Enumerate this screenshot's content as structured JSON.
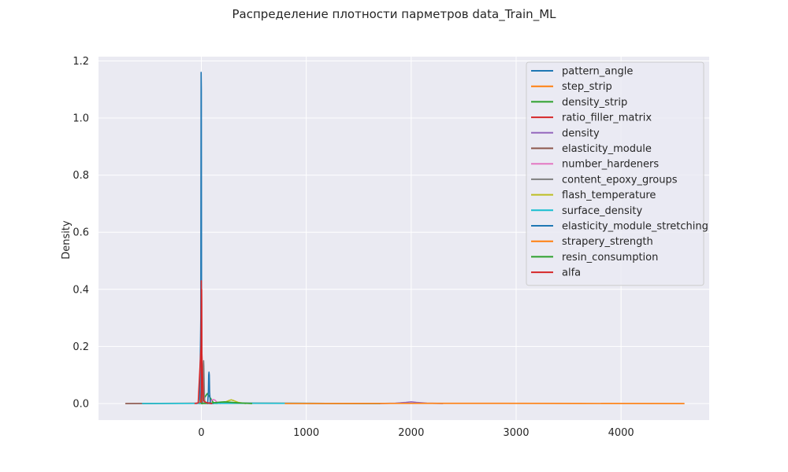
{
  "chart_data": {
    "type": "line",
    "title": "Распределение плотности парметров data_Train_ML",
    "xlabel": "",
    "ylabel": "Density",
    "xlim": [
      -980,
      4840
    ],
    "ylim": [
      -0.058,
      1.215
    ],
    "xticks": [
      0,
      1000,
      2000,
      3000,
      4000
    ],
    "yticks": [
      0.0,
      0.2,
      0.4,
      0.6,
      0.8,
      1.0,
      1.2
    ],
    "xtick_labels": [
      "0",
      "1000",
      "2000",
      "3000",
      "4000"
    ],
    "ytick_labels": [
      "0.0",
      "0.2",
      "0.4",
      "0.6",
      "0.8",
      "1.0",
      "1.2"
    ],
    "grid": true,
    "legend_position": "top-right",
    "series": [
      {
        "name": "pattern_angle",
        "color": "#1f77b4",
        "x": [
          -45,
          -15,
          -5,
          -2,
          0,
          2,
          5,
          15,
          45,
          60,
          90,
          120
        ],
        "y": [
          0,
          0.002,
          0.3,
          1.16,
          1.1,
          0.3,
          0.02,
          0.001,
          0.0005,
          0.0002,
          0.0001,
          0
        ]
      },
      {
        "name": "step_strip",
        "color": "#ff7f0e",
        "x": [
          -15,
          0,
          6,
          10,
          14,
          20,
          35
        ],
        "y": [
          0,
          0.02,
          0.08,
          0.1,
          0.08,
          0.02,
          0
        ]
      },
      {
        "name": "density_strip",
        "color": "#2ca02c",
        "x": [
          -20,
          0,
          30,
          57,
          85,
          115,
          140
        ],
        "y": [
          0,
          0.003,
          0.02,
          0.035,
          0.02,
          0.003,
          0
        ]
      },
      {
        "name": "ratio_filler_matrix",
        "color": "#d62728",
        "x": [
          -3,
          0,
          2,
          3,
          4,
          6,
          9
        ],
        "y": [
          0,
          0.05,
          0.35,
          0.4,
          0.35,
          0.05,
          0
        ]
      },
      {
        "name": "density",
        "color": "#9467bd",
        "x": [
          1700,
          1850,
          1950,
          2000,
          2050,
          2150,
          2300
        ],
        "y": [
          0,
          0.001,
          0.004,
          0.006,
          0.004,
          0.001,
          0
        ]
      },
      {
        "name": "elasticity_module",
        "color": "#8c564b",
        "x": [
          -720,
          -400,
          0,
          300,
          700,
          1200,
          1700
        ],
        "y": [
          0,
          0.0003,
          0.001,
          0.0014,
          0.001,
          0.0003,
          0
        ]
      },
      {
        "name": "number_hardeners",
        "color": "#e377c2",
        "x": [
          50,
          80,
          100,
          115,
          130,
          150,
          180
        ],
        "y": [
          0,
          0.004,
          0.012,
          0.014,
          0.012,
          0.004,
          0
        ]
      },
      {
        "name": "content_epoxy_groups",
        "color": "#7f7f7f",
        "x": [
          10,
          15,
          20,
          22,
          24,
          29,
          34
        ],
        "y": [
          0,
          0.03,
          0.13,
          0.15,
          0.13,
          0.03,
          0
        ]
      },
      {
        "name": "flash_temperature",
        "color": "#bcbd22",
        "x": [
          150,
          220,
          260,
          285,
          310,
          350,
          420
        ],
        "y": [
          0,
          0.004,
          0.01,
          0.013,
          0.01,
          0.004,
          0
        ]
      },
      {
        "name": "surface_density",
        "color": "#17becf",
        "x": [
          -560,
          -200,
          200,
          480,
          800,
          1200,
          1700
        ],
        "y": [
          0,
          0.0003,
          0.0008,
          0.001,
          0.0008,
          0.0003,
          0
        ]
      },
      {
        "name": "elasticity_module_stretching",
        "color": "#1f77b4",
        "x": [
          60,
          67,
          70,
          73,
          76,
          79,
          86
        ],
        "y": [
          0,
          0.04,
          0.1,
          0.11,
          0.1,
          0.04,
          0
        ]
      },
      {
        "name": "strapery_strength",
        "color": "#ff7f0e",
        "x": [
          800,
          1500,
          2200,
          2460,
          2800,
          3600,
          4600
        ],
        "y": [
          0,
          0.0003,
          0.0007,
          0.0008,
          0.0007,
          0.0003,
          0
        ]
      },
      {
        "name": "resin_consumption",
        "color": "#2ca02c",
        "x": [
          0,
          100,
          180,
          220,
          260,
          360,
          480
        ],
        "y": [
          0,
          0.002,
          0.005,
          0.006,
          0.005,
          0.002,
          0
        ]
      },
      {
        "name": "alfa",
        "color": "#d62728",
        "x": [
          -60,
          -30,
          -3,
          0,
          3,
          20,
          40,
          60,
          80,
          100
        ],
        "y": [
          0,
          0.002,
          0.2,
          0.43,
          0.2,
          0.01,
          0.005,
          0.002,
          0.001,
          0
        ]
      }
    ]
  }
}
